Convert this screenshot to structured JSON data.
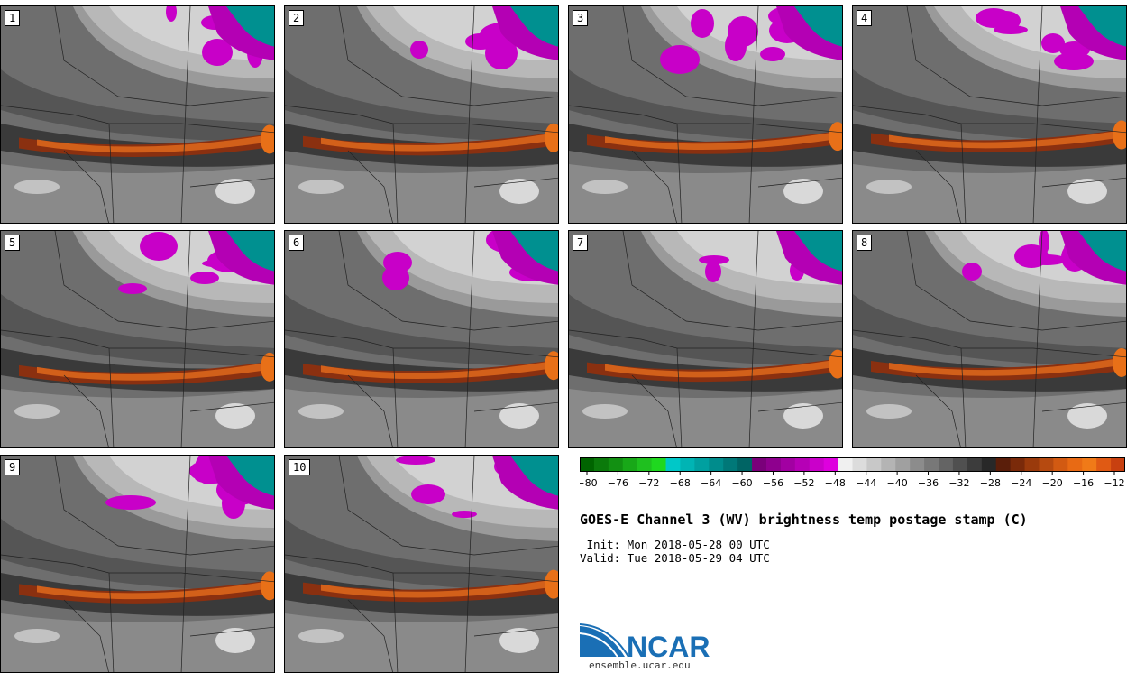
{
  "panels": [
    {
      "label": "1",
      "seed": 1
    },
    {
      "label": "2",
      "seed": 2
    },
    {
      "label": "3",
      "seed": 3
    },
    {
      "label": "4",
      "seed": 4
    },
    {
      "label": "5",
      "seed": 5
    },
    {
      "label": "6",
      "seed": 6
    },
    {
      "label": "7",
      "seed": 7
    },
    {
      "label": "8",
      "seed": 8
    },
    {
      "label": "9",
      "seed": 9
    },
    {
      "label": "10",
      "seed": 10
    }
  ],
  "colorbar": {
    "ticks": [
      "-80",
      "-76",
      "-72",
      "-68",
      "-64",
      "-60",
      "-56",
      "-52",
      "-48",
      "-44",
      "-40",
      "-36",
      "-32",
      "-28",
      "-24",
      "-20",
      "-16",
      "-12"
    ],
    "colors": [
      "#006400",
      "#0b7a0b",
      "#129012",
      "#18a818",
      "#1fc01f",
      "#1fd81f",
      "#00c8c8",
      "#00b4b4",
      "#00a0a0",
      "#008c8c",
      "#007878",
      "#006464",
      "#7a007a",
      "#8e008e",
      "#a200a2",
      "#b600b6",
      "#ca00ca",
      "#de00de",
      "#f0f0f0",
      "#dcdcdc",
      "#c8c8c8",
      "#b4b4b4",
      "#a0a0a0",
      "#8c8c8c",
      "#787878",
      "#646464",
      "#505050",
      "#3c3c3c",
      "#282828",
      "#5a1e0a",
      "#7a2a0a",
      "#9a3a0c",
      "#b64a10",
      "#d25a12",
      "#e86a14",
      "#f07a18",
      "#e05a14",
      "#c84010"
    ]
  },
  "title": "GOES-E Channel 3 (WV) brightness temp postage stamp (C)",
  "init_line": " Init: Mon 2018-05-28 00 UTC",
  "valid_line": "Valid: Tue 2018-05-29 04 UTC",
  "logo": {
    "text": "NCAR",
    "url": "ensemble.ucar.edu",
    "color": "#1a6fb5"
  }
}
